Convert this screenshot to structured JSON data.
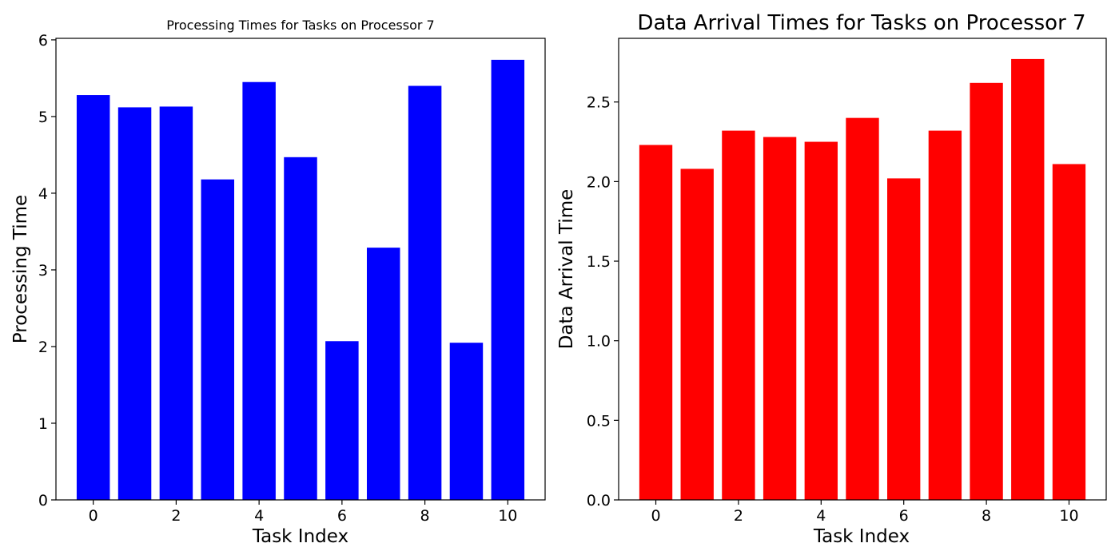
{
  "chart_data": [
    {
      "type": "bar",
      "title": "Processing Times for Tasks on Processor 7",
      "xlabel": "Task Index",
      "ylabel": "Processing Time",
      "categories": [
        0,
        1,
        2,
        3,
        4,
        5,
        6,
        7,
        8,
        9,
        10
      ],
      "values": [
        5.28,
        5.12,
        5.13,
        4.18,
        5.45,
        4.47,
        2.07,
        3.29,
        5.4,
        2.05,
        5.74
      ],
      "color": "#0000ff",
      "xlim": [
        -0.9,
        10.9
      ],
      "ylim": [
        0,
        6.02
      ],
      "xticks": [
        0,
        2,
        4,
        6,
        8,
        10
      ],
      "yticks": [
        0,
        1,
        2,
        3,
        4,
        5,
        6
      ],
      "ytick_labels": [
        "0",
        "1",
        "2",
        "3",
        "4",
        "5",
        "6"
      ],
      "xtick_labels": [
        "0",
        "2",
        "4",
        "6",
        "8",
        "10"
      ],
      "grid": false,
      "legend": "none"
    },
    {
      "type": "bar",
      "title": "Data Arrival Times for Tasks on Processor 7",
      "xlabel": "Task Index",
      "ylabel": "Data Arrival Time",
      "categories": [
        0,
        1,
        2,
        3,
        4,
        5,
        6,
        7,
        8,
        9,
        10
      ],
      "values": [
        2.23,
        2.08,
        2.32,
        2.28,
        2.25,
        2.4,
        2.02,
        2.32,
        2.62,
        2.77,
        2.11
      ],
      "color": "#ff0000",
      "xlim": [
        -0.9,
        10.9
      ],
      "ylim": [
        0,
        2.9
      ],
      "xticks": [
        0,
        2,
        4,
        6,
        8,
        10
      ],
      "yticks": [
        0.0,
        0.5,
        1.0,
        1.5,
        2.0,
        2.5
      ],
      "ytick_labels": [
        "0.0",
        "0.5",
        "1.0",
        "1.5",
        "2.0",
        "2.5"
      ],
      "xtick_labels": [
        "0",
        "2",
        "4",
        "6",
        "8",
        "10"
      ],
      "grid": false,
      "legend": "none"
    }
  ]
}
